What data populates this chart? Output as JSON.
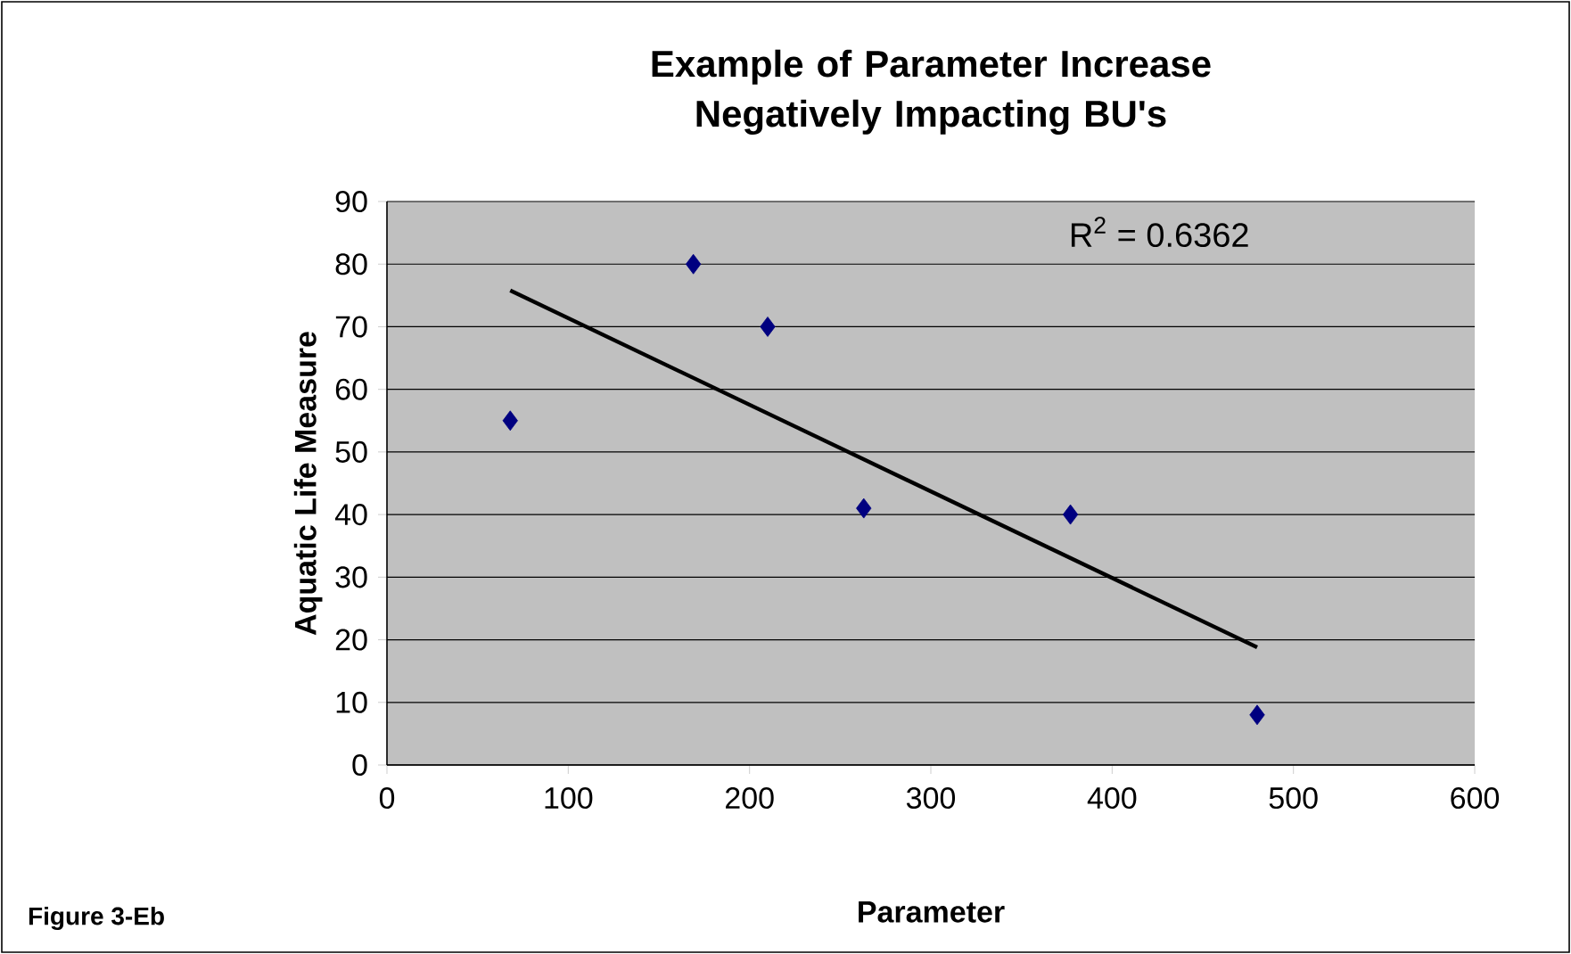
{
  "chart_data": {
    "type": "scatter",
    "title": "Example of Parameter Increase Negatively Impacting BU's",
    "xlabel": "Parameter",
    "ylabel": "Aquatic Life Measure",
    "series": [
      {
        "color": "#000080",
        "marker": "diamond",
        "x": [
          68,
          169,
          210,
          263,
          377,
          480
        ],
        "values": [
          55,
          80,
          70,
          41,
          40,
          8
        ]
      },
      {
        "type": "line",
        "color": "#000000",
        "marker": "none",
        "line_style": "solid",
        "x": [
          68,
          480
        ],
        "values": [
          75.8,
          18.8
        ]
      }
    ],
    "xlim": [
      0,
      600
    ],
    "xticks": [
      0,
      100,
      200,
      300,
      400,
      500,
      600
    ],
    "ylim": [
      0,
      90
    ],
    "yticks": [
      0,
      10,
      20,
      30,
      40,
      50,
      60,
      70,
      80,
      90
    ],
    "grid": "y",
    "annotations": [
      "R$^{2}$ = 0.6362",
      "Figure 3-Eb"
    ]
  }
}
